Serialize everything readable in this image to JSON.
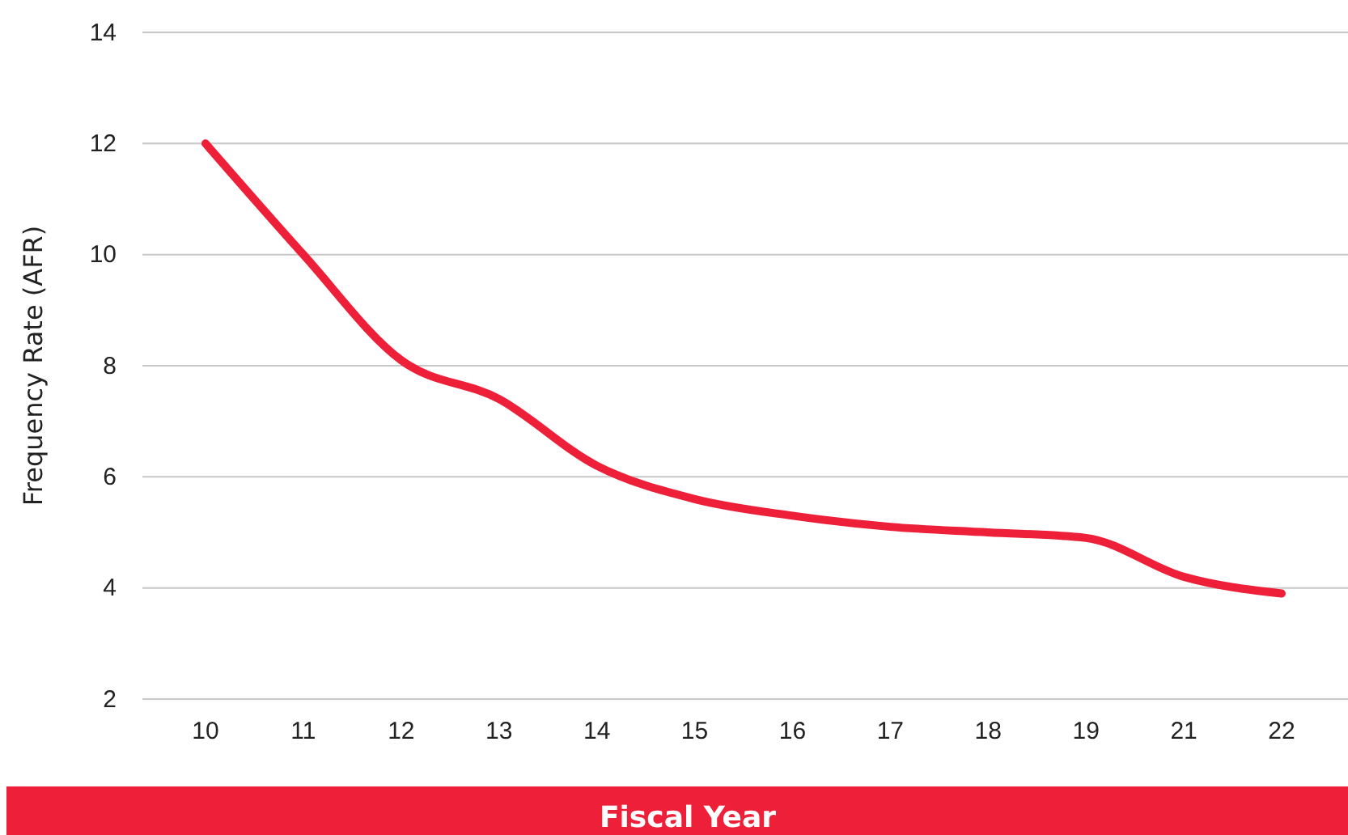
{
  "chart_data": {
    "type": "line",
    "xlabel": "Fiscal Year",
    "ylabel": "Frequency Rate (AFR)",
    "categories": [
      "10",
      "11",
      "12",
      "13",
      "14",
      "15",
      "16",
      "17",
      "18",
      "19",
      "21",
      "22"
    ],
    "series": [
      {
        "color": "#ee2039",
        "values": [
          12,
          10,
          8.1,
          7.4,
          6.2,
          5.6,
          5.3,
          5.1,
          5,
          4.9,
          4.2,
          3.9
        ]
      }
    ],
    "ylim": [
      2,
      14
    ],
    "yticks": [
      2,
      4,
      6,
      8,
      10,
      12,
      14
    ],
    "grid": "y",
    "marker": "none",
    "line_style": "solid"
  }
}
